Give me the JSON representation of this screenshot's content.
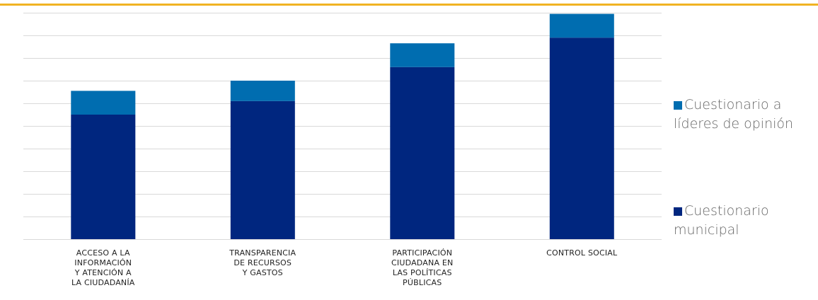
{
  "colors": {
    "accent_line": "#f0b323",
    "municipal": "#00267f",
    "lideres": "#006db0",
    "grid": "#d9d9d9"
  },
  "chart_data": {
    "type": "bar",
    "stacked": true,
    "categories": [
      "ACCESO A LA\nINFORMACIÓN\nY ATENCIÓN A\nLA CIUDADANÍA",
      "TRANSPARENCIA\nDE RECURSOS\nY GASTOS",
      "PARTICIPACIÓN\nCIUDADANA EN\nLAS POLÍTICAS\nPÚBLICAS",
      "CONTROL SOCIAL"
    ],
    "series": [
      {
        "name": "Cuestionario municipal",
        "values": [
          5.5,
          6.1,
          7.6,
          8.9
        ]
      },
      {
        "name": "Cuestionario a líderes de opinión",
        "values": [
          1.05,
          0.9,
          1.05,
          1.05
        ]
      }
    ],
    "ylim": [
      0,
      10
    ],
    "grid": true,
    "legend_position": "right",
    "legend": {
      "lideres": "Cuestionario a líderes de opinión",
      "municipal": "Cuestionario municipal"
    }
  }
}
